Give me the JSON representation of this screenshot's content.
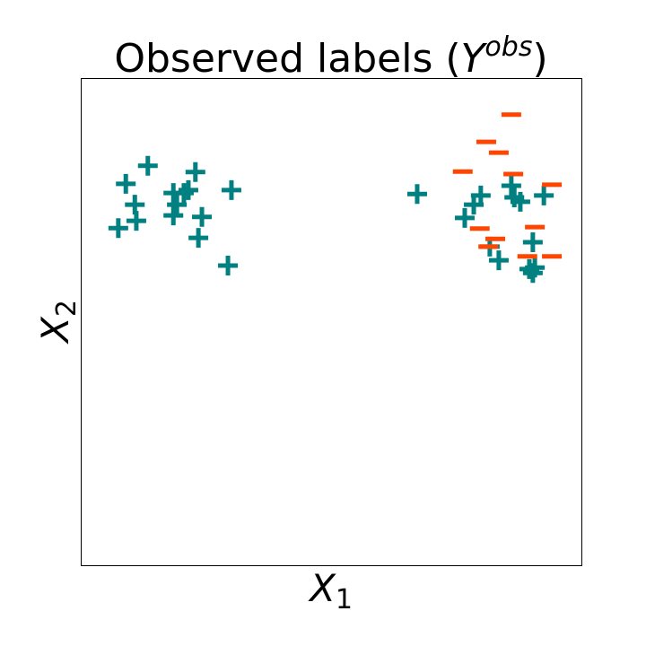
{
  "chart_data": {
    "type": "scatter",
    "title": {
      "text": "Observed labels (",
      "var": "Y",
      "sup": "obs",
      "end": ")"
    },
    "xlabel": {
      "var": "X",
      "sub": "1"
    },
    "ylabel": {
      "var": "X",
      "sub": "2"
    },
    "xlim": [
      0,
      1
    ],
    "ylim": [
      0,
      1
    ],
    "series": [
      {
        "color": "#008080",
        "marker": "plus",
        "x": [
          0.134,
          0.09,
          0.229,
          0.301,
          0.108,
          0.185,
          0.206,
          0.215,
          0.192,
          0.185,
          0.111,
          0.242,
          0.075,
          0.235,
          0.294,
          0.672,
          0.799,
          0.785,
          0.767,
          0.86,
          0.866,
          0.878,
          0.925,
          0.903,
          0.817,
          0.835,
          0.896,
          0.903,
          0.907
        ],
        "values": [
          0.82,
          0.783,
          0.807,
          0.77,
          0.74,
          0.764,
          0.764,
          0.77,
          0.74,
          0.718,
          0.707,
          0.715,
          0.692,
          0.672,
          0.615,
          0.762,
          0.759,
          0.74,
          0.713,
          0.779,
          0.755,
          0.746,
          0.759,
          0.663,
          0.654,
          0.626,
          0.608,
          0.6,
          0.611
        ]
      },
      {
        "color": "#ff4500",
        "marker": "minus",
        "x": [
          0.86,
          0.81,
          0.835,
          0.763,
          0.864,
          0.941,
          0.797,
          0.907,
          0.828,
          0.814,
          0.892,
          0.941
        ],
        "values": [
          0.925,
          0.869,
          0.847,
          0.808,
          0.803,
          0.781,
          0.691,
          0.694,
          0.67,
          0.654,
          0.634,
          0.634
        ]
      }
    ]
  }
}
